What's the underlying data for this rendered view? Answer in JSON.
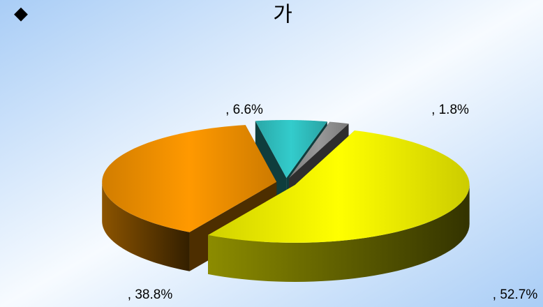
{
  "chart_data": {
    "type": "pie",
    "bullet": "◆",
    "title": "가",
    "values": [
      52.7,
      38.8,
      6.6,
      1.8
    ],
    "value_labels": [
      ", 52.7%",
      ", 38.8%",
      ", 6.6%",
      ", 1.8%"
    ],
    "colors": [
      "#ffff00",
      "#ff9900",
      "#33cccc",
      "#999999"
    ]
  }
}
